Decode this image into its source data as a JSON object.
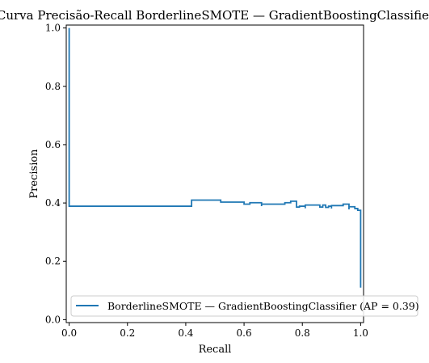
{
  "chart_data": {
    "type": "line",
    "title": "Curva Precisão-Recall BorderlineSMOTE — GradientBoostingClassifier",
    "xlabel": "Recall",
    "ylabel": "Precision",
    "xlim": [
      -0.01,
      1.01
    ],
    "ylim": [
      -0.01,
      1.01
    ],
    "x_ticks": [
      0.0,
      0.2,
      0.4,
      0.6,
      0.8,
      1.0
    ],
    "x_tick_labels": [
      "0.0",
      "0.2",
      "0.4",
      "0.6",
      "0.8",
      "1.0"
    ],
    "y_ticks": [
      0.0,
      0.2,
      0.4,
      0.6,
      0.8,
      1.0
    ],
    "y_tick_labels": [
      "0.0",
      "0.2",
      "0.4",
      "0.6",
      "0.8",
      "1.0"
    ],
    "grid": false,
    "legend_position": "bottom-right",
    "series": [
      {
        "name": "BorderlineSMOTE — GradientBoostingClassifier (AP = 0.39)",
        "color": "#1f77b4",
        "drawstyle": "steps-post",
        "points": [
          [
            0.0,
            1.0
          ],
          [
            0.0,
            0.389
          ],
          [
            0.42,
            0.389
          ],
          [
            0.42,
            0.41
          ],
          [
            0.52,
            0.41
          ],
          [
            0.52,
            0.403
          ],
          [
            0.6,
            0.403
          ],
          [
            0.6,
            0.396
          ],
          [
            0.62,
            0.396
          ],
          [
            0.62,
            0.401
          ],
          [
            0.66,
            0.401
          ],
          [
            0.66,
            0.389
          ],
          [
            0.66,
            0.396
          ],
          [
            0.74,
            0.396
          ],
          [
            0.74,
            0.401
          ],
          [
            0.76,
            0.401
          ],
          [
            0.76,
            0.406
          ],
          [
            0.78,
            0.406
          ],
          [
            0.78,
            0.386
          ],
          [
            0.79,
            0.386
          ],
          [
            0.79,
            0.389
          ],
          [
            0.81,
            0.389
          ],
          [
            0.81,
            0.382
          ],
          [
            0.81,
            0.393
          ],
          [
            0.86,
            0.393
          ],
          [
            0.86,
            0.386
          ],
          [
            0.87,
            0.386
          ],
          [
            0.87,
            0.393
          ],
          [
            0.88,
            0.393
          ],
          [
            0.88,
            0.385
          ],
          [
            0.89,
            0.385
          ],
          [
            0.89,
            0.389
          ],
          [
            0.9,
            0.389
          ],
          [
            0.9,
            0.381
          ],
          [
            0.9,
            0.391
          ],
          [
            0.94,
            0.391
          ],
          [
            0.94,
            0.396
          ],
          [
            0.96,
            0.396
          ],
          [
            0.96,
            0.378
          ],
          [
            0.96,
            0.387
          ],
          [
            0.98,
            0.387
          ],
          [
            0.98,
            0.381
          ],
          [
            0.99,
            0.381
          ],
          [
            0.99,
            0.375
          ],
          [
            1.0,
            0.375
          ],
          [
            1.0,
            0.11
          ]
        ]
      }
    ]
  }
}
